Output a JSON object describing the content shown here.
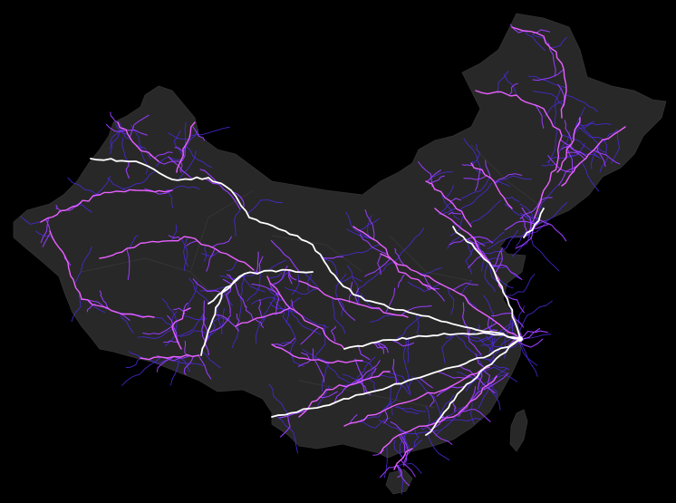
{
  "map": {
    "background_color": "#000000",
    "landmass_color": "#282828",
    "boundary_color": "#3a3a3a",
    "flow_palette": {
      "trunk": "#ffffff",
      "major": "#e860ff",
      "minor": "#9a3cff",
      "faint": "#4a28d8"
    },
    "regions": [
      "mainland",
      "taiwan",
      "hainan"
    ],
    "route_tiers": [
      "trunk",
      "major",
      "minor"
    ],
    "labels": []
  }
}
